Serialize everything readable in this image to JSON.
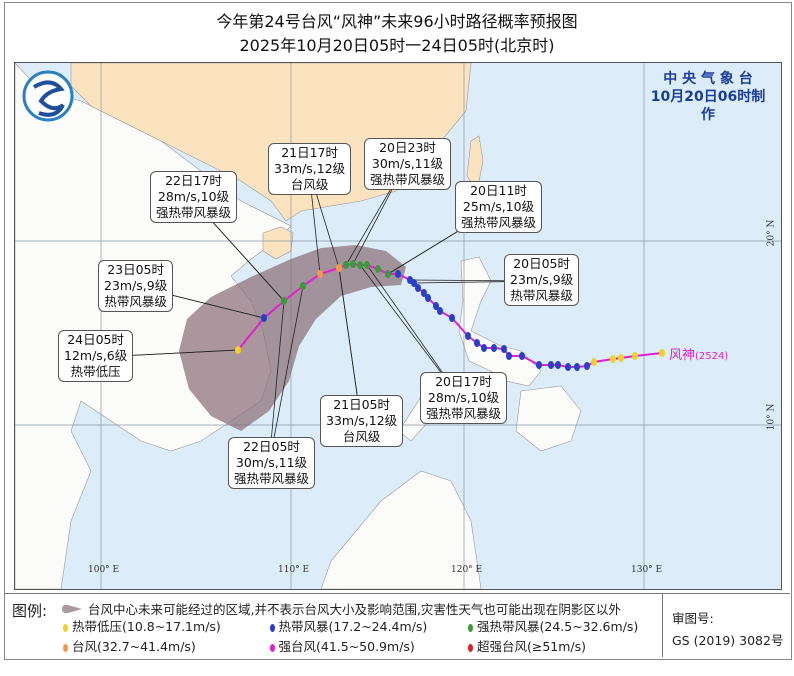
{
  "title": {
    "line1": "今年第24号台风“风神”未来96小时路径概率预报图",
    "line2": "2025年10月20日05时一24日05时(北京时)"
  },
  "agency": {
    "name": "中 央 气 象 台",
    "made": "10月20日06时制作"
  },
  "typhoon": {
    "name": "风神",
    "code": "(2524)",
    "track_color": "#e020d0"
  },
  "axes": {
    "lon_labels": [
      "100° E",
      "110° E",
      "120° E",
      "130° E"
    ],
    "lat_labels": [
      "20° N",
      "10° N"
    ]
  },
  "colors": {
    "sea": "#dcecf8",
    "china_land": "#fbe3bf",
    "other_land": "#fbfbfa",
    "cone": "#8c6f78",
    "tropical_depression": "#f2d02a",
    "tropical_storm": "#2a3fc8",
    "severe_tropical_storm": "#3c9a3c",
    "typhoon": "#f29a4a",
    "severe_typhoon": "#e020d0",
    "super_typhoon": "#e02020"
  },
  "forecast_labels": [
    {
      "time": "21日17时",
      "wind": "33m/s,12级",
      "level": "台风级"
    },
    {
      "time": "20日23时",
      "wind": "30m/s,11级",
      "level": "强热带风暴级"
    },
    {
      "time": "22日17时",
      "wind": "28m/s,10级",
      "level": "强热带风暴级"
    },
    {
      "time": "20日11时",
      "wind": "25m/s,10级",
      "level": "强热带风暴级"
    },
    {
      "time": "23日05时",
      "wind": "23m/s,9级",
      "level": "热带风暴级"
    },
    {
      "time": "20日05时",
      "wind": "23m/s,9级",
      "level": "热带风暴级"
    },
    {
      "time": "24日05时",
      "wind": "12m/s,6级",
      "level": "热带低压"
    },
    {
      "time": "20日17时",
      "wind": "28m/s,10级",
      "level": "强热带风暴级"
    },
    {
      "time": "21日05时",
      "wind": "33m/s,12级",
      "level": "台风级"
    },
    {
      "time": "22日05时",
      "wind": "30m/s,11级",
      "level": "强热带风暴级"
    }
  ],
  "legend": {
    "title": "图例:",
    "cone_desc": "台风中心未来可能经过的区域,并不表示台风大小及影响范围,灾害性天气也可能出现在阴影区以外",
    "items": [
      {
        "label": "热带低压(10.8~17.1m/s)",
        "color": "#f2d02a"
      },
      {
        "label": "热带风暴(17.2~24.4m/s)",
        "color": "#2a3fc8"
      },
      {
        "label": "强热带风暴(24.5~32.6m/s)",
        "color": "#3c9a3c"
      },
      {
        "label": "台风(32.7~41.4m/s)",
        "color": "#f29a4a"
      },
      {
        "label": "强台风(41.5~50.9m/s)",
        "color": "#e020d0"
      },
      {
        "label": "超强台风(≥51m/s)",
        "color": "#e02020"
      }
    ],
    "review_label": "审图号:",
    "review_no": "GS (2019) 3082号"
  }
}
